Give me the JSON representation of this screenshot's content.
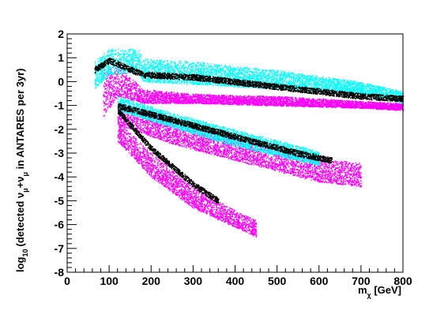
{
  "chart_data": {
    "type": "scatter",
    "xlabel": "m_χ [GeV]",
    "xlabel_main": "m",
    "xlabel_sub": "χ",
    "xlabel_unit": " [GeV]",
    "ylabel": "log10 (detected ν_μ + ν̄_μ in ANTARES per 3yr)",
    "ylabel_parts": {
      "log": "log",
      "log_sub": "10",
      "pre": "(detected ν",
      "nu_sub": "μ",
      "plus": "+ν",
      "nubar_sub": "μ",
      "post": " in ANTARES per 3yr)"
    },
    "xlim": [
      0,
      800
    ],
    "ylim": [
      -8,
      2
    ],
    "x_ticks": [
      0,
      100,
      200,
      300,
      400,
      500,
      600,
      700,
      800
    ],
    "y_ticks": [
      2,
      1,
      0,
      -1,
      -2,
      -3,
      -4,
      -5,
      -6,
      -7,
      -8
    ],
    "grid": false,
    "series": [
      {
        "color": "#ff00ff",
        "regions": [
          {
            "band": "upper",
            "x": [
              85,
              120,
              180,
              300,
              500,
              700,
              800
            ],
            "y_top": [
              0.6,
              0.7,
              -0.3,
              -0.5,
              -0.6,
              -0.8,
              -0.9
            ],
            "y_bottom": [
              -1.5,
              -0.6,
              -0.9,
              -0.9,
              -1.0,
              -1.1,
              -1.2
            ]
          },
          {
            "band": "middle",
            "x": [
              120,
              250,
              400,
              600,
              700
            ],
            "y_top": [
              -0.8,
              -1.6,
              -2.3,
              -3.2,
              -3.4
            ],
            "y_bottom": [
              -1.8,
              -2.6,
              -3.3,
              -4.2,
              -4.4
            ]
          },
          {
            "band": "lower",
            "x": [
              120,
              200,
              300,
              400,
              450
            ],
            "y_top": [
              -1.6,
              -3.0,
              -4.4,
              -5.4,
              -5.8
            ],
            "y_bottom": [
              -2.5,
              -4.0,
              -5.3,
              -6.1,
              -6.5
            ]
          }
        ]
      },
      {
        "color": "#00ffff",
        "regions": [
          {
            "band": "upper",
            "x": [
              65,
              100,
              170,
              180,
              300,
              500,
              700,
              800
            ],
            "y_top": [
              0.9,
              1.4,
              1.4,
              1.0,
              0.85,
              0.5,
              0.0,
              -0.4
            ],
            "y_bottom": [
              -0.3,
              0.3,
              0.4,
              0.0,
              -0.1,
              -0.3,
              -0.5,
              -0.9
            ]
          },
          {
            "band": "middle",
            "x": [
              120,
              250,
              400,
              600
            ],
            "y_top": [
              -0.6,
              -1.3,
              -2.0,
              -2.9
            ],
            "y_bottom": [
              -1.2,
              -1.9,
              -2.7,
              -3.5
            ]
          }
        ]
      },
      {
        "color": "#000000",
        "regions": [
          {
            "band": "upper",
            "x": [
              65,
              100,
              180,
              300,
              500,
              700,
              800
            ],
            "y": [
              0.5,
              0.9,
              0.3,
              0.2,
              -0.2,
              -0.6,
              -0.7
            ]
          },
          {
            "band": "middle",
            "x": [
              120,
              250,
              400,
              550,
              630
            ],
            "y": [
              -1.0,
              -1.6,
              -2.3,
              -3.0,
              -3.3
            ]
          },
          {
            "band": "lower",
            "x": [
              120,
              200,
              300,
              360
            ],
            "y": [
              -1.2,
              -2.8,
              -4.3,
              -5.0
            ]
          }
        ]
      }
    ]
  }
}
